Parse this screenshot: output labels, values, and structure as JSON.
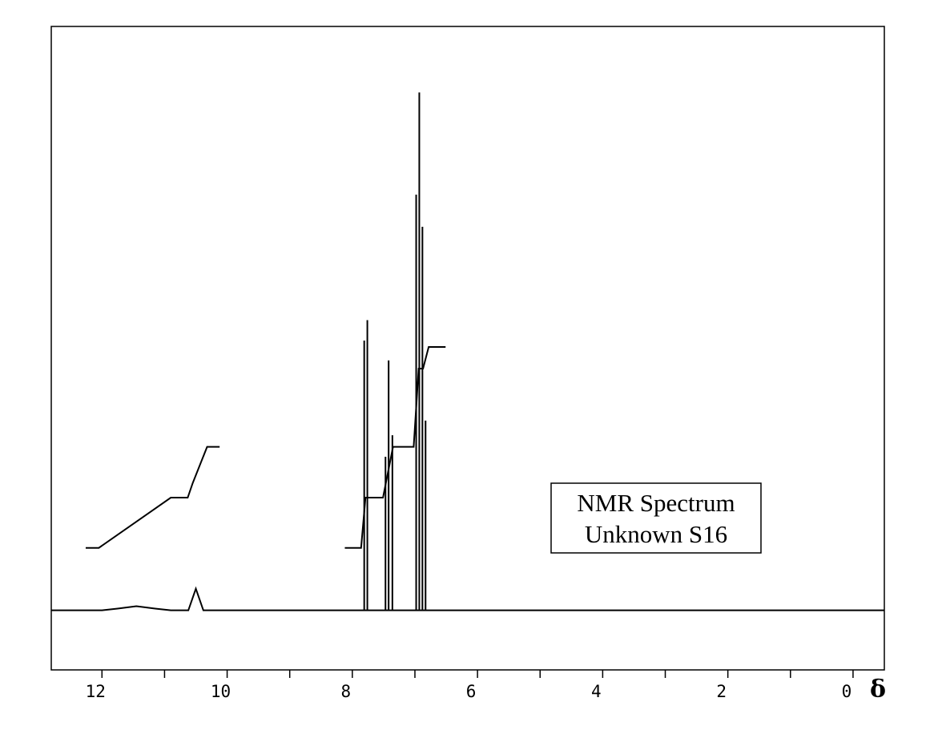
{
  "chart_data": {
    "type": "line",
    "annotation": [
      "NMR Spectrum",
      "Unknown S16"
    ],
    "xlabel": "δ",
    "xlim": [
      12.81,
      -0.5
    ],
    "ylim": [
      -10.2,
      100
    ],
    "xticks": [
      12,
      10,
      8,
      6,
      4,
      2,
      0
    ],
    "xminorticks": [
      11,
      9,
      7,
      5,
      3,
      1
    ],
    "grid": false,
    "series": [
      {
        "color": "#000000",
        "x": [
          12.81,
          12.0,
          11.75,
          11.45,
          11.15,
          10.9,
          10.62,
          10.5,
          10.38,
          7.81,
          7.81,
          7.81,
          7.76,
          7.76,
          7.76,
          7.47,
          7.47,
          7.47,
          7.42,
          7.42,
          7.42,
          7.36,
          7.36,
          7.36,
          6.98,
          6.98,
          6.98,
          6.93,
          6.93,
          6.93,
          6.88,
          6.88,
          6.88,
          6.83,
          6.83,
          6.83,
          -0.5
        ],
        "values": [
          0,
          0,
          0.3,
          0.7,
          0.3,
          0,
          0,
          3.7,
          0,
          0,
          46.2,
          0,
          0,
          49.7,
          0,
          0,
          26.3,
          0,
          0,
          42.8,
          0,
          0,
          30.0,
          0,
          0,
          71.2,
          0,
          0,
          88.7,
          0,
          0,
          65.7,
          0,
          0,
          32.5,
          0,
          0
        ]
      },
      {
        "color": "#000000",
        "x": [
          12.26,
          12.05,
          10.9,
          10.63,
          10.55,
          10.32,
          10.12,
          null,
          8.12,
          7.86,
          7.79,
          7.51,
          7.35,
          7.02,
          6.94,
          6.87,
          6.78,
          6.51
        ],
        "values": [
          10.7,
          10.7,
          19.3,
          19.3,
          21.8,
          28.0,
          28.0,
          null,
          10.7,
          10.7,
          19.3,
          19.3,
          28.0,
          28.0,
          41.4,
          41.4,
          45.1,
          45.1
        ]
      }
    ]
  }
}
